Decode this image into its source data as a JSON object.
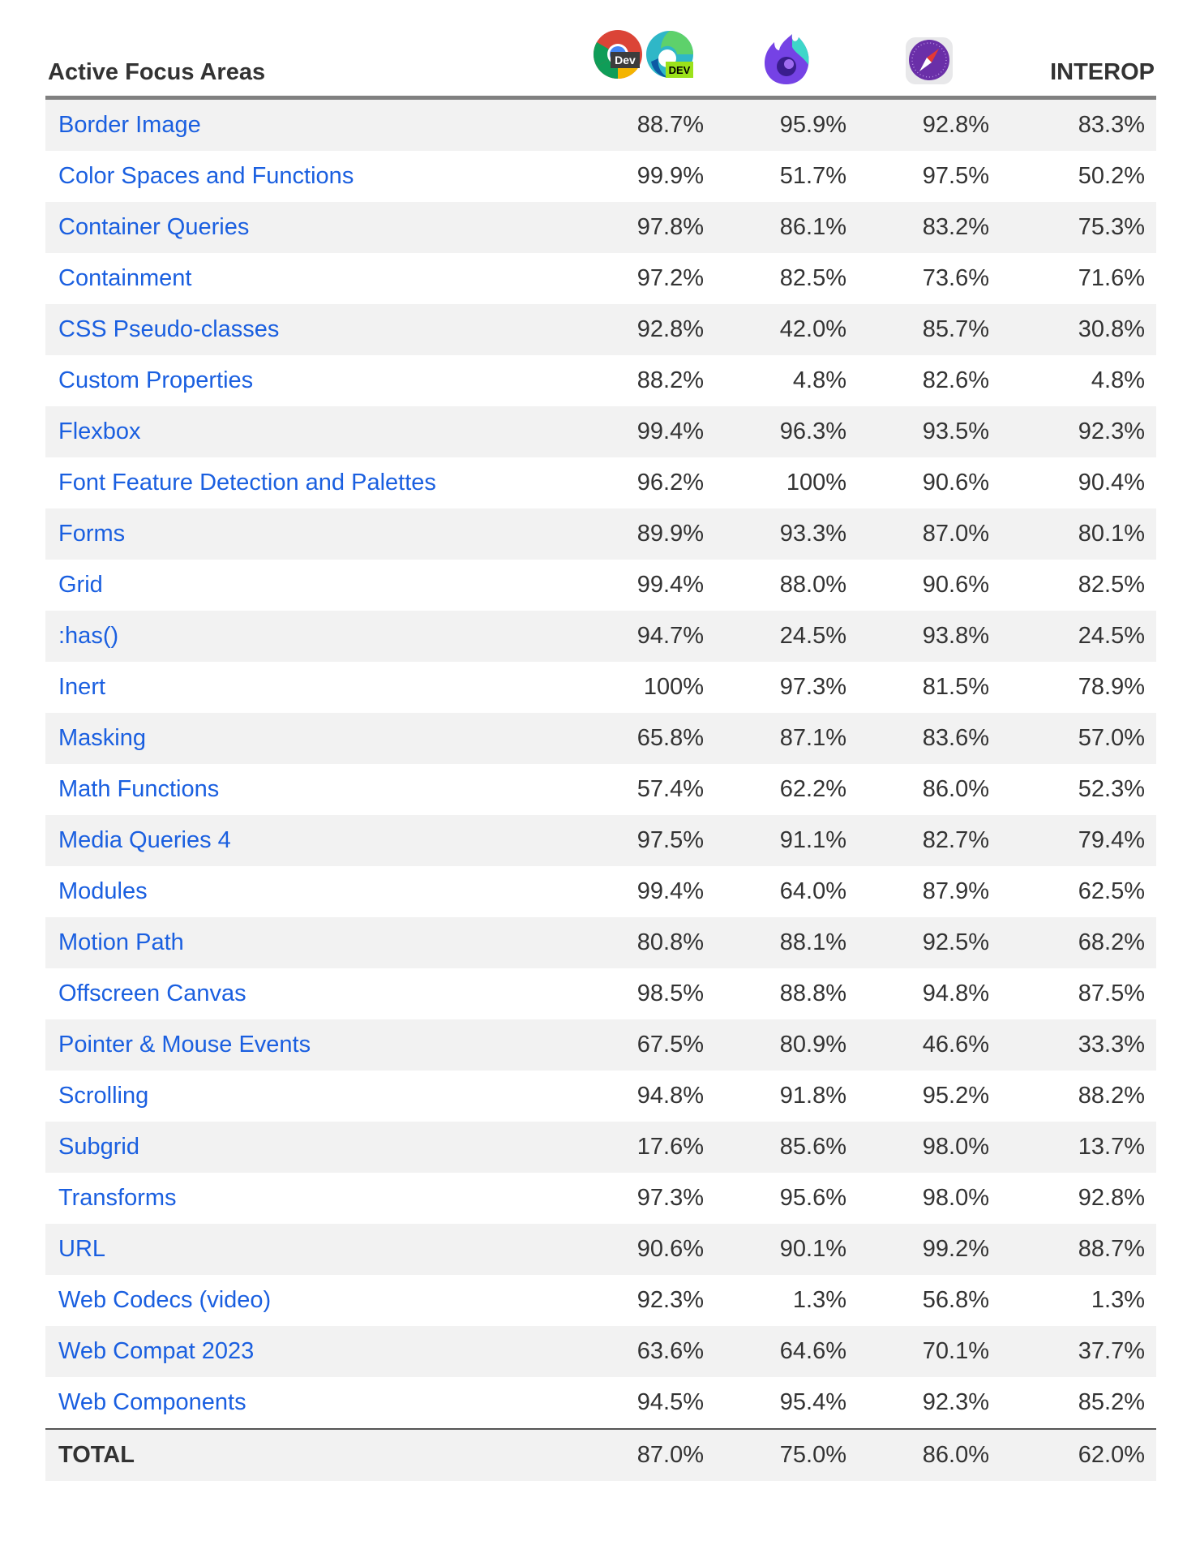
{
  "header": {
    "title": "Active Focus Areas",
    "browsers": [
      {
        "icon": "chrome-dev-icon",
        "badge": "Dev"
      },
      {
        "icon": "edge-dev-icon",
        "badge": "DEV"
      },
      {
        "icon": "firefox-nightly-icon"
      },
      {
        "icon": "safari-technology-preview-icon"
      }
    ],
    "interop_label": "INTEROP"
  },
  "colors": {
    "link": "#1a5fe0",
    "stripe": "#f2f2f2",
    "header_rule": "#808080"
  },
  "rows": [
    {
      "name": "Border Image",
      "chrome_edge": "88.7%",
      "firefox": "95.9%",
      "safari": "92.8%",
      "interop": "83.3%"
    },
    {
      "name": "Color Spaces and Functions",
      "chrome_edge": "99.9%",
      "firefox": "51.7%",
      "safari": "97.5%",
      "interop": "50.2%"
    },
    {
      "name": "Container Queries",
      "chrome_edge": "97.8%",
      "firefox": "86.1%",
      "safari": "83.2%",
      "interop": "75.3%"
    },
    {
      "name": "Containment",
      "chrome_edge": "97.2%",
      "firefox": "82.5%",
      "safari": "73.6%",
      "interop": "71.6%"
    },
    {
      "name": "CSS Pseudo-classes",
      "chrome_edge": "92.8%",
      "firefox": "42.0%",
      "safari": "85.7%",
      "interop": "30.8%"
    },
    {
      "name": "Custom Properties",
      "chrome_edge": "88.2%",
      "firefox": "4.8%",
      "safari": "82.6%",
      "interop": "4.8%"
    },
    {
      "name": "Flexbox",
      "chrome_edge": "99.4%",
      "firefox": "96.3%",
      "safari": "93.5%",
      "interop": "92.3%"
    },
    {
      "name": "Font Feature Detection and Palettes",
      "chrome_edge": "96.2%",
      "firefox": "100%",
      "safari": "90.6%",
      "interop": "90.4%"
    },
    {
      "name": "Forms",
      "chrome_edge": "89.9%",
      "firefox": "93.3%",
      "safari": "87.0%",
      "interop": "80.1%"
    },
    {
      "name": "Grid",
      "chrome_edge": "99.4%",
      "firefox": "88.0%",
      "safari": "90.6%",
      "interop": "82.5%"
    },
    {
      "name": ":has()",
      "chrome_edge": "94.7%",
      "firefox": "24.5%",
      "safari": "93.8%",
      "interop": "24.5%"
    },
    {
      "name": "Inert",
      "chrome_edge": "100%",
      "firefox": "97.3%",
      "safari": "81.5%",
      "interop": "78.9%"
    },
    {
      "name": "Masking",
      "chrome_edge": "65.8%",
      "firefox": "87.1%",
      "safari": "83.6%",
      "interop": "57.0%"
    },
    {
      "name": "Math Functions",
      "chrome_edge": "57.4%",
      "firefox": "62.2%",
      "safari": "86.0%",
      "interop": "52.3%"
    },
    {
      "name": "Media Queries 4",
      "chrome_edge": "97.5%",
      "firefox": "91.1%",
      "safari": "82.7%",
      "interop": "79.4%"
    },
    {
      "name": "Modules",
      "chrome_edge": "99.4%",
      "firefox": "64.0%",
      "safari": "87.9%",
      "interop": "62.5%"
    },
    {
      "name": "Motion Path",
      "chrome_edge": "80.8%",
      "firefox": "88.1%",
      "safari": "92.5%",
      "interop": "68.2%"
    },
    {
      "name": "Offscreen Canvas",
      "chrome_edge": "98.5%",
      "firefox": "88.8%",
      "safari": "94.8%",
      "interop": "87.5%"
    },
    {
      "name": "Pointer & Mouse Events",
      "chrome_edge": "67.5%",
      "firefox": "80.9%",
      "safari": "46.6%",
      "interop": "33.3%"
    },
    {
      "name": "Scrolling",
      "chrome_edge": "94.8%",
      "firefox": "91.8%",
      "safari": "95.2%",
      "interop": "88.2%"
    },
    {
      "name": "Subgrid",
      "chrome_edge": "17.6%",
      "firefox": "85.6%",
      "safari": "98.0%",
      "interop": "13.7%"
    },
    {
      "name": "Transforms",
      "chrome_edge": "97.3%",
      "firefox": "95.6%",
      "safari": "98.0%",
      "interop": "92.8%"
    },
    {
      "name": "URL",
      "chrome_edge": "90.6%",
      "firefox": "90.1%",
      "safari": "99.2%",
      "interop": "88.7%"
    },
    {
      "name": "Web Codecs (video)",
      "chrome_edge": "92.3%",
      "firefox": "1.3%",
      "safari": "56.8%",
      "interop": "1.3%"
    },
    {
      "name": "Web Compat 2023",
      "chrome_edge": "63.6%",
      "firefox": "64.6%",
      "safari": "70.1%",
      "interop": "37.7%"
    },
    {
      "name": "Web Components",
      "chrome_edge": "94.5%",
      "firefox": "95.4%",
      "safari": "92.3%",
      "interop": "85.2%"
    }
  ],
  "total": {
    "name": "TOTAL",
    "chrome_edge": "87.0%",
    "firefox": "75.0%",
    "safari": "86.0%",
    "interop": "62.0%"
  }
}
